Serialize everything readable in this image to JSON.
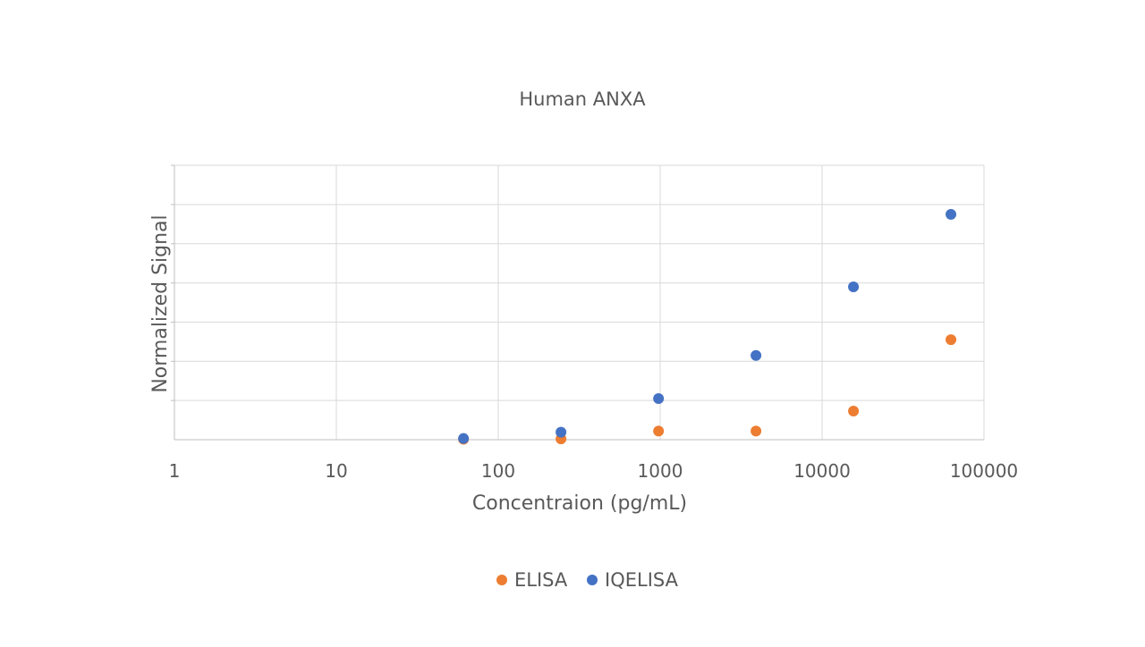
{
  "chart_data": {
    "type": "scatter",
    "title": "Human ANXA",
    "xlabel": "Concentraion (pg/mL)",
    "ylabel": "Normalized Signal",
    "x_scale": "log",
    "xlim": [
      1,
      100000
    ],
    "x_ticks": [
      "1",
      "10",
      "100",
      "1000",
      "10000",
      "100000"
    ],
    "ylim": [
      0,
      7
    ],
    "y_tick_labels_shown": false,
    "grid": true,
    "legend_position": "bottom",
    "series": [
      {
        "name": "ELISA",
        "color": "#ED7D31",
        "points": [
          {
            "x": 61,
            "y": 0.01
          },
          {
            "x": 244,
            "y": 0.02
          },
          {
            "x": 977,
            "y": 0.22
          },
          {
            "x": 3906,
            "y": 0.22
          },
          {
            "x": 15625,
            "y": 0.73
          },
          {
            "x": 62500,
            "y": 2.55
          }
        ]
      },
      {
        "name": "IQELISA",
        "color": "#4472C4",
        "points": [
          {
            "x": 61,
            "y": 0.03
          },
          {
            "x": 244,
            "y": 0.19
          },
          {
            "x": 977,
            "y": 1.05
          },
          {
            "x": 3906,
            "y": 2.15
          },
          {
            "x": 15625,
            "y": 3.9
          },
          {
            "x": 62500,
            "y": 5.75
          }
        ]
      }
    ]
  }
}
